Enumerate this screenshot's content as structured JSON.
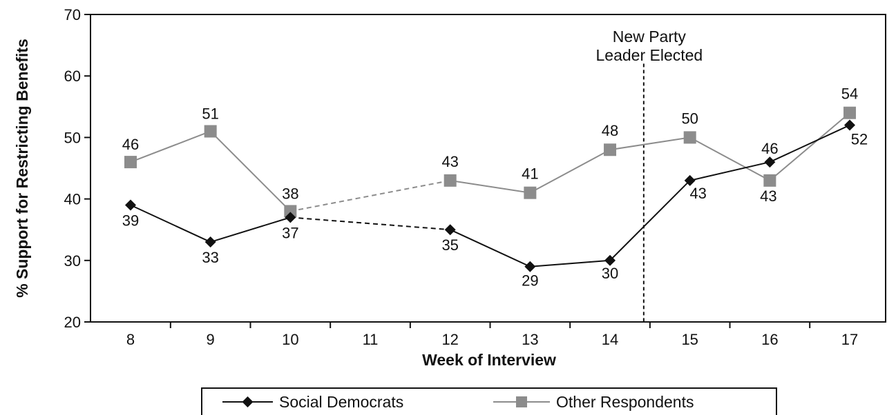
{
  "chart_data": {
    "type": "line",
    "title": "",
    "xlabel": "Week of Interview",
    "ylabel": "% Support for Restricting Benefits",
    "categories": [
      "8",
      "9",
      "10",
      "11",
      "12",
      "13",
      "14",
      "15",
      "16",
      "17"
    ],
    "ylim": [
      20,
      70
    ],
    "yticks": [
      "20",
      "30",
      "40",
      "50",
      "60",
      "70"
    ],
    "grid": false,
    "legend_position": "bottom-center",
    "series": [
      {
        "name": "Social Democrats",
        "values": [
          39,
          33,
          37,
          null,
          35,
          29,
          30,
          43,
          46,
          52
        ],
        "labels": [
          "39",
          "33",
          "37",
          "",
          "35",
          "29",
          "30",
          "43",
          "46",
          "52"
        ],
        "color": "#111111",
        "marker": "diamond",
        "dashed_gap": [
          2,
          4
        ]
      },
      {
        "name": "Other Respondents",
        "values": [
          46,
          51,
          38,
          null,
          43,
          41,
          48,
          50,
          43,
          54
        ],
        "labels": [
          "46",
          "51",
          "38",
          "",
          "43",
          "41",
          "48",
          "50",
          "43",
          "54"
        ],
        "color": "#8c8c8c",
        "marker": "square",
        "dashed_gap": [
          2,
          4
        ]
      }
    ],
    "annotations": [
      {
        "lines": [
          "New Party",
          "Leader Elected"
        ],
        "between_categories": [
          "14",
          "15"
        ],
        "style": "dashed-vertical-line"
      }
    ]
  }
}
